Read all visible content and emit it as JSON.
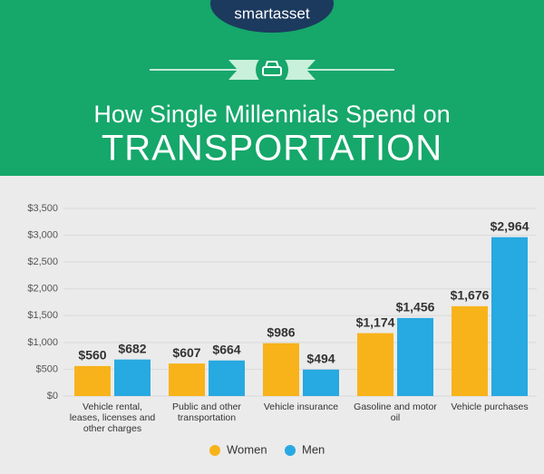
{
  "brand": "smartasset",
  "chart_data": {
    "type": "bar",
    "title": "How Single Millennials Spend on",
    "subtitle": "TRANSPORTATION",
    "categories": [
      "Vehicle rental, leases, licenses and other charges",
      "Public and other transportation",
      "Vehicle insurance",
      "Gasoline and motor oil",
      "Vehicle purchases"
    ],
    "series": [
      {
        "name": "Women",
        "color": "#f8b31b",
        "values": [
          560,
          607,
          986,
          1174,
          1676
        ],
        "value_labels": [
          "$560",
          "$607",
          "$986",
          "$1,174",
          "$1,676"
        ]
      },
      {
        "name": "Men",
        "color": "#27a9e1",
        "values": [
          682,
          664,
          494,
          1456,
          2964
        ],
        "value_labels": [
          "$682",
          "$664",
          "$494",
          "$1,456",
          "$2,964"
        ]
      }
    ],
    "ylim": [
      0,
      3500
    ],
    "yticks": [
      {
        "value": 0,
        "label": "$0"
      },
      {
        "value": 500,
        "label": "$500"
      },
      {
        "value": 1000,
        "label": "$1,000"
      },
      {
        "value": 1500,
        "label": "$1,500"
      },
      {
        "value": 2000,
        "label": "$2,000"
      },
      {
        "value": 2500,
        "label": "$2,500"
      },
      {
        "value": 3000,
        "label": "$3,000"
      },
      {
        "value": 3500,
        "label": "$3,500"
      }
    ],
    "grid": true,
    "legend": "bottom"
  }
}
